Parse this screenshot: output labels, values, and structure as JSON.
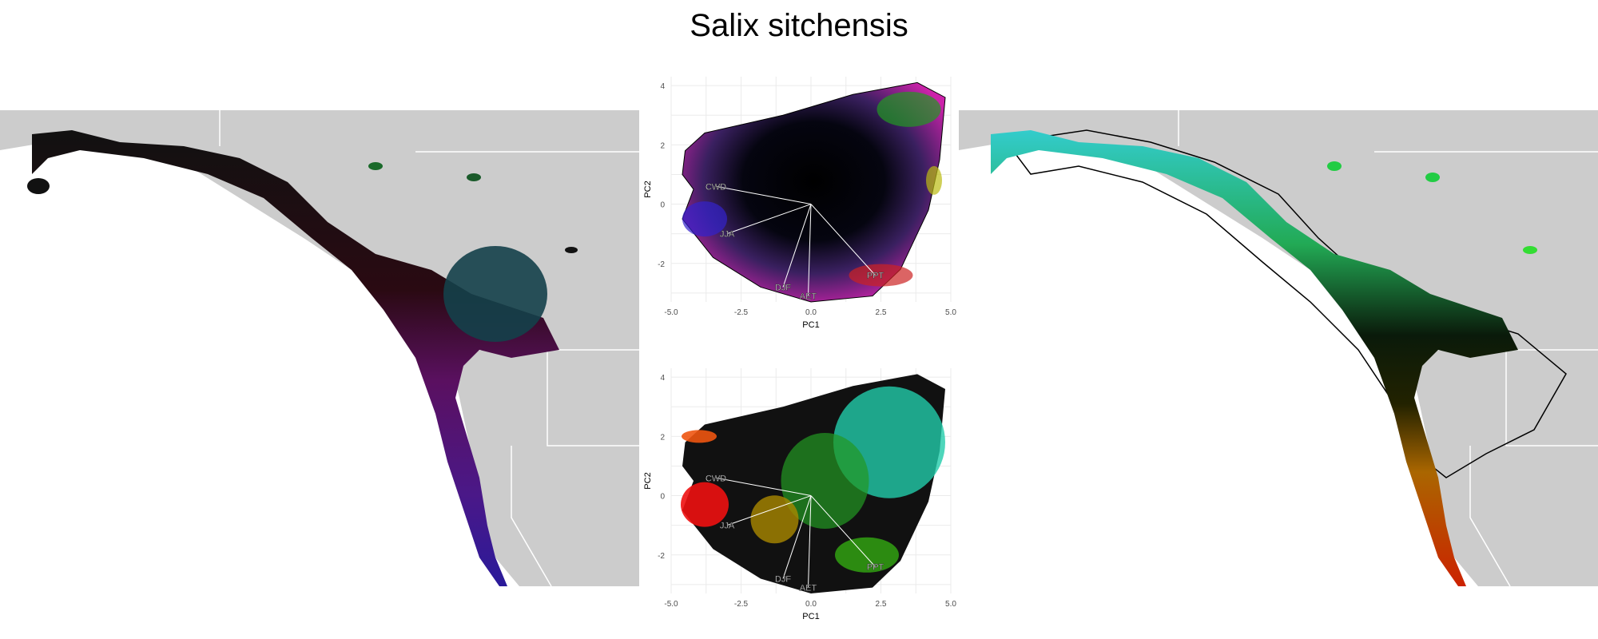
{
  "title": "Salix sitchensis",
  "colors": {
    "land": "#cccccc",
    "borders": "#ffffff",
    "grid": "#ebebeb",
    "vector": "#ffffff"
  },
  "chart_data": [
    {
      "type": "scatter",
      "panel": "top",
      "xlabel": "PC1",
      "ylabel": "PC2",
      "xlim": [
        -5.0,
        5.0
      ],
      "ylim": [
        -3.3,
        4.3
      ],
      "xticks": [
        "-5.0",
        "-2.5",
        "0.0",
        "2.5",
        "5.0"
      ],
      "yticks": [
        "4",
        "2",
        "0",
        "-2"
      ],
      "grid": true,
      "vectors": [
        {
          "label": "CWD",
          "x": -3.4,
          "y": 0.6
        },
        {
          "label": "JJA",
          "x": -3.0,
          "y": -1.0
        },
        {
          "label": "DJF",
          "x": -1.0,
          "y": -2.8
        },
        {
          "label": "AET",
          "x": -0.1,
          "y": -3.1
        },
        {
          "label": "PPT",
          "x": 2.3,
          "y": -2.4
        }
      ]
    },
    {
      "type": "scatter",
      "panel": "bottom",
      "xlabel": "PC1",
      "ylabel": "PC2",
      "xlim": [
        -5.0,
        5.0
      ],
      "ylim": [
        -3.3,
        4.3
      ],
      "xticks": [
        "-5.0",
        "-2.5",
        "0.0",
        "2.5",
        "5.0"
      ],
      "yticks": [
        "4",
        "2",
        "0",
        "-2"
      ],
      "grid": true,
      "vectors": [
        {
          "label": "CWD",
          "x": -3.4,
          "y": 0.6
        },
        {
          "label": "JJA",
          "x": -3.0,
          "y": -1.0
        },
        {
          "label": "DJF",
          "x": -1.0,
          "y": -2.8
        },
        {
          "label": "AET",
          "x": -0.1,
          "y": -3.1
        },
        {
          "label": "PPT",
          "x": 2.3,
          "y": -2.4
        }
      ]
    }
  ]
}
